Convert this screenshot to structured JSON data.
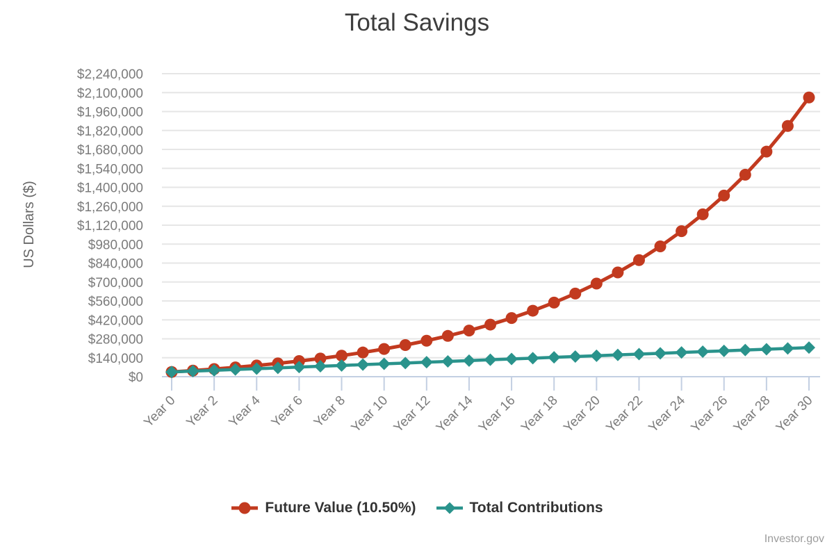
{
  "page": {
    "attribution": "Investor.gov"
  },
  "colors": {
    "future_value": "#c23a1f",
    "total_contributions": "#2a938c",
    "gridline": "#e6e6e6",
    "axis_line": "#c3cfe2",
    "tick_label": "#7b7b7b",
    "title_text": "#3d3d3d",
    "axis_title": "#666666",
    "legend_text": "#333333",
    "attribution_text": "#9c9c9c"
  },
  "chart_data": {
    "type": "line",
    "title": "Total Savings",
    "ylabel": "US Dollars ($)",
    "xlabel": "",
    "grid": "horizontal",
    "legend_position": "bottom",
    "ylim": [
      0,
      2240000
    ],
    "y_tick_interval": 140000,
    "y_ticks": [
      0,
      140000,
      280000,
      420000,
      560000,
      700000,
      840000,
      980000,
      1120000,
      1260000,
      1400000,
      1540000,
      1680000,
      1820000,
      1960000,
      2100000,
      2240000
    ],
    "y_tick_labels": [
      "$0",
      "$140,000",
      "$280,000",
      "$420,000",
      "$560,000",
      "$700,000",
      "$840,000",
      "$980,000",
      "$1,120,000",
      "$1,260,000",
      "$1,400,000",
      "$1,540,000",
      "$1,680,000",
      "$1,820,000",
      "$1,960,000",
      "$2,100,000",
      "$2,240,000"
    ],
    "years": [
      0,
      1,
      2,
      3,
      4,
      5,
      6,
      7,
      8,
      9,
      10,
      11,
      12,
      13,
      14,
      15,
      16,
      17,
      18,
      19,
      20,
      21,
      22,
      23,
      24,
      25,
      26,
      27,
      28,
      29,
      30
    ],
    "x_tick_step": 2,
    "x_tick_labels": [
      "Year 0",
      "Year 2",
      "Year 4",
      "Year 6",
      "Year 8",
      "Year 10",
      "Year 12",
      "Year 14",
      "Year 16",
      "Year 18",
      "Year 20",
      "Year 22",
      "Year 24",
      "Year 26",
      "Year 28",
      "Year 30"
    ],
    "series": [
      {
        "id": "future-value",
        "name": "Future Value (10.50%)",
        "marker": "circle",
        "color": "#c23a1f",
        "values": [
          35000,
          45154,
          56428,
          68944,
          82840,
          98266,
          115393,
          134408,
          155517,
          178953,
          204972,
          233858,
          265927,
          301531,
          341059,
          384942,
          433662,
          487751,
          547801,
          614469,
          688484,
          770656,
          861883,
          963165,
          1075608,
          1200443,
          1339034,
          1492898,
          1663719,
          1853367,
          2063914
        ]
      },
      {
        "id": "total-contributions",
        "name": "Total Contributions",
        "marker": "diamond",
        "color": "#2a938c",
        "values": [
          35000,
          41000,
          47000,
          53000,
          59000,
          65000,
          71000,
          77000,
          83000,
          89000,
          95000,
          101000,
          107000,
          113000,
          119000,
          125000,
          131000,
          137000,
          143000,
          149000,
          155000,
          161000,
          167000,
          173000,
          179000,
          185000,
          191000,
          197000,
          203000,
          209000,
          215000
        ]
      }
    ]
  }
}
